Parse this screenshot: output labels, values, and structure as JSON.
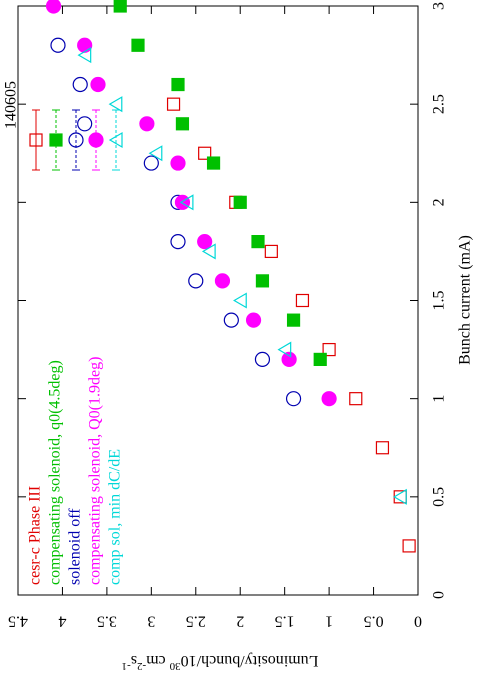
{
  "chart_data": {
    "type": "scatter",
    "annotation": "140605",
    "xlabel": "Bunch current (mA)",
    "ylabel_parts": [
      {
        "text": "Luminosity/bunch/10"
      },
      {
        "text": "30",
        "sup": true
      },
      {
        "text": " cm"
      },
      {
        "text": "-2",
        "sup": true
      },
      {
        "text": "s"
      },
      {
        "text": "-1",
        "sup": true
      }
    ],
    "xlim": [
      0,
      3
    ],
    "xticks": [
      0,
      0.5,
      1,
      1.5,
      2,
      2.5,
      3
    ],
    "ylim": [
      0,
      4.5
    ],
    "yticks": [
      0,
      0.5,
      1,
      1.5,
      2,
      2.5,
      3,
      3.5,
      4,
      4.5
    ],
    "series": [
      {
        "name": "cesr-c Phase III",
        "color": "#e00000",
        "marker": "square-open",
        "x": [
          0.25,
          0.5,
          0.75,
          1.0,
          1.25,
          1.5,
          1.75,
          2.0,
          2.25,
          2.5
        ],
        "values": [
          0.1,
          0.2,
          0.4,
          0.7,
          1.0,
          1.3,
          1.65,
          2.05,
          2.4,
          2.75
        ]
      },
      {
        "name": "compensating solenoid, q0(4.5deg)",
        "color": "#00c000",
        "marker": "square-filled",
        "x": [
          1.2,
          1.4,
          1.6,
          1.8,
          2.0,
          2.2,
          2.4,
          2.6,
          2.8,
          3.0
        ],
        "values": [
          1.1,
          1.4,
          1.75,
          1.8,
          2.0,
          2.3,
          2.65,
          2.7,
          3.15,
          3.35
        ]
      },
      {
        "name": "solenoid off",
        "color": "#0000b0",
        "marker": "circle-open",
        "x": [
          1.0,
          1.2,
          1.4,
          1.6,
          1.8,
          2.0,
          2.2,
          2.4,
          2.6,
          2.8
        ],
        "values": [
          1.4,
          1.75,
          2.1,
          2.5,
          2.7,
          2.7,
          3.0,
          3.75,
          3.8,
          4.05
        ]
      },
      {
        "name": "compensating solenoid, Q0(1.9deg)",
        "color": "#ff00ff",
        "marker": "circle-filled",
        "x": [
          1.0,
          1.2,
          1.4,
          1.6,
          1.8,
          2.0,
          2.2,
          2.4,
          2.6,
          2.8,
          3.0
        ],
        "values": [
          1.0,
          1.45,
          1.85,
          2.2,
          2.4,
          2.65,
          2.7,
          3.05,
          3.6,
          3.75,
          4.1
        ]
      },
      {
        "name": "comp sol, min dC/dE",
        "color": "#00d8d8",
        "marker": "triangle-open",
        "x": [
          0.5,
          1.25,
          1.5,
          1.75,
          2.0,
          2.25,
          2.5,
          2.75
        ],
        "values": [
          0.2,
          1.5,
          2.0,
          2.35,
          2.6,
          2.95,
          3.4,
          3.75
        ]
      }
    ]
  }
}
